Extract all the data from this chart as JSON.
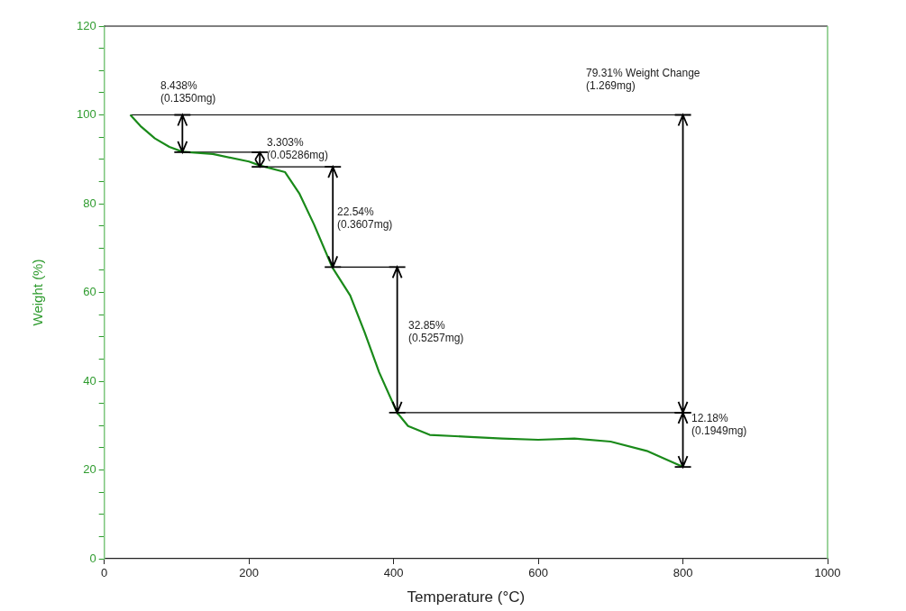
{
  "chart_data": {
    "type": "line",
    "xlabel": "Temperature (°C)",
    "ylabel": "Weight (%)",
    "xlim": [
      0,
      1000
    ],
    "xticks": [
      0,
      200,
      400,
      600,
      800,
      1000
    ],
    "ylim": [
      0,
      120
    ],
    "yticks": [
      0,
      {
        "value": 5,
        "label": null
      },
      {
        "value": 10,
        "label": null
      },
      {
        "value": 15,
        "label": null
      },
      20,
      {
        "value": 25,
        "label": null
      },
      {
        "value": 30,
        "label": null
      },
      {
        "value": 35,
        "label": null
      },
      40,
      {
        "value": 45,
        "label": null
      },
      {
        "value": 50,
        "label": null
      },
      {
        "value": 55,
        "label": null
      },
      60,
      {
        "value": 65,
        "label": null
      },
      {
        "value": 70,
        "label": null
      },
      {
        "value": 75,
        "label": null
      },
      80,
      {
        "value": 85,
        "label": null
      },
      {
        "value": 90,
        "label": null
      },
      {
        "value": 95,
        "label": null
      },
      100,
      {
        "value": 105,
        "label": null
      },
      {
        "value": 110,
        "label": null
      },
      {
        "value": 115,
        "label": null
      },
      120
    ],
    "grid": false,
    "legend": false,
    "marker": "none",
    "line_style": "solid",
    "series": [
      {
        "color": "#1a8a1a",
        "x": [
          36,
          50,
          70,
          90,
          108,
          150,
          200,
          215,
          250,
          270,
          290,
          315,
          340,
          360,
          380,
          405,
          420,
          450,
          500,
          550,
          600,
          650,
          700,
          750,
          800
        ],
        "values": [
          100,
          97.5,
          94.7,
          92.8,
          91.7,
          91.2,
          89.5,
          88.6,
          87.1,
          82.2,
          75.3,
          65.7,
          59.3,
          51,
          42,
          32.9,
          29.9,
          27.9,
          27.5,
          27.1,
          26.8,
          27.1,
          26.4,
          24.3,
          20.7
        ]
      },
      {
        "color": "#000000",
        "x": [
          36,
          800
        ],
        "values": [
          100,
          100
        ]
      },
      {
        "color": "#000000",
        "x": [
          108,
          215
        ],
        "values": [
          91.6,
          91.6
        ]
      },
      {
        "color": "#000000",
        "x": [
          215,
          316
        ],
        "values": [
          88.3,
          88.3
        ]
      },
      {
        "color": "#000000",
        "x": [
          315,
          405
        ],
        "values": [
          65.7,
          65.7
        ]
      },
      {
        "color": "#000000",
        "x": [
          405,
          800
        ],
        "values": [
          32.9,
          32.9
        ]
      }
    ],
    "annotations": [
      {
        "text": "8.438%\n(0.1350mg)",
        "x": 108,
        "y": 91.6
      },
      {
        "text": "3.303%\n(0.05286mg)",
        "x": 215,
        "y": 88.3
      },
      "22.54%\n(0.3607mg)",
      "32.85%\n(0.5257mg)",
      "79.31% Weight Change\n(1.269mg)",
      {
        "text": "12.18%\n(0.1949mg)",
        "x": 800,
        "y": 20.7
      }
    ]
  }
}
